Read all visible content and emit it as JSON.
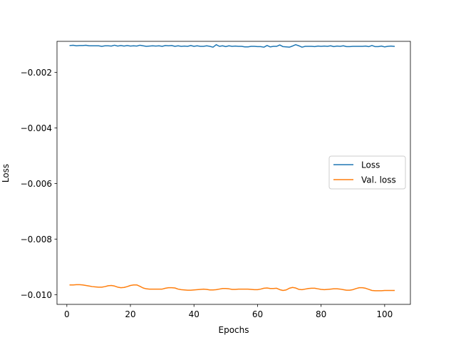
{
  "chart_data": {
    "type": "line",
    "title": "",
    "xlabel": "Epochs",
    "ylabel": "Loss",
    "xlim": [
      -3.1,
      108.1
    ],
    "ylim": [
      -0.01035,
      -0.00088
    ],
    "x_ticks": [
      0,
      20,
      40,
      60,
      80,
      100
    ],
    "x_tick_labels": [
      "0",
      "20",
      "40",
      "60",
      "80",
      "100"
    ],
    "y_ticks": [
      -0.002,
      -0.004,
      -0.006,
      -0.008,
      -0.01
    ],
    "y_tick_labels": [
      "−0.002",
      "−0.004",
      "−0.006",
      "−0.008",
      "−0.010"
    ],
    "grid": false,
    "legend_position": "center-right",
    "series": [
      {
        "name": "Loss",
        "color": "#1f77b4",
        "x_start": 1,
        "x_step": 1,
        "values": [
          -0.00103,
          -0.00102,
          -0.00104,
          -0.00103,
          -0.00103,
          -0.00102,
          -0.00104,
          -0.00104,
          -0.00104,
          -0.00104,
          -0.00106,
          -0.00104,
          -0.00104,
          -0.00105,
          -0.00102,
          -0.00105,
          -0.00103,
          -0.00105,
          -0.00103,
          -0.00105,
          -0.00104,
          -0.00105,
          -0.00102,
          -0.00104,
          -0.00106,
          -0.00105,
          -0.00104,
          -0.00105,
          -0.00104,
          -0.00106,
          -0.00103,
          -0.00104,
          -0.00103,
          -0.00106,
          -0.00104,
          -0.00106,
          -0.00105,
          -0.00106,
          -0.00103,
          -0.00106,
          -0.00104,
          -0.00106,
          -0.00106,
          -0.00104,
          -0.00106,
          -0.00109,
          -0.001,
          -0.00106,
          -0.00104,
          -0.00107,
          -0.00104,
          -0.00106,
          -0.00105,
          -0.00106,
          -0.00106,
          -0.00108,
          -0.00108,
          -0.00106,
          -0.00106,
          -0.00107,
          -0.00107,
          -0.00109,
          -0.00103,
          -0.00108,
          -0.00106,
          -0.00106,
          -0.00101,
          -0.00107,
          -0.00108,
          -0.00109,
          -0.00105,
          -0.001,
          -0.00104,
          -0.00109,
          -0.00106,
          -0.00106,
          -0.00106,
          -0.00107,
          -0.00105,
          -0.00106,
          -0.00105,
          -0.00106,
          -0.00104,
          -0.00107,
          -0.00105,
          -0.00106,
          -0.00104,
          -0.00107,
          -0.00107,
          -0.00106,
          -0.00106,
          -0.00106,
          -0.00106,
          -0.00105,
          -0.00107,
          -0.00103,
          -0.00107,
          -0.00107,
          -0.00105,
          -0.00108,
          -0.00106,
          -0.00105,
          -0.00106
        ]
      },
      {
        "name": "Val. loss",
        "color": "#ff7f0e",
        "x_start": 1,
        "x_step": 1,
        "values": [
          -0.00965,
          -0.00965,
          -0.00964,
          -0.00964,
          -0.00965,
          -0.00967,
          -0.00969,
          -0.00971,
          -0.00972,
          -0.00973,
          -0.00973,
          -0.00971,
          -0.00968,
          -0.00967,
          -0.00969,
          -0.00973,
          -0.00975,
          -0.00974,
          -0.00971,
          -0.00967,
          -0.00965,
          -0.00965,
          -0.0097,
          -0.00976,
          -0.00979,
          -0.0098,
          -0.0098,
          -0.0098,
          -0.0098,
          -0.0098,
          -0.00977,
          -0.00975,
          -0.00975,
          -0.00976,
          -0.0098,
          -0.00982,
          -0.00983,
          -0.00984,
          -0.00984,
          -0.00983,
          -0.00982,
          -0.00981,
          -0.0098,
          -0.00981,
          -0.00983,
          -0.00983,
          -0.00982,
          -0.0098,
          -0.00978,
          -0.00978,
          -0.00979,
          -0.00981,
          -0.00981,
          -0.0098,
          -0.0098,
          -0.0098,
          -0.0098,
          -0.00981,
          -0.00982,
          -0.00982,
          -0.0098,
          -0.00977,
          -0.00976,
          -0.00978,
          -0.00978,
          -0.00977,
          -0.00982,
          -0.00985,
          -0.00983,
          -0.00977,
          -0.00974,
          -0.00976,
          -0.00981,
          -0.00982,
          -0.0098,
          -0.00978,
          -0.00977,
          -0.00977,
          -0.00979,
          -0.00981,
          -0.00982,
          -0.00981,
          -0.0098,
          -0.00979,
          -0.00979,
          -0.0098,
          -0.00982,
          -0.00984,
          -0.00984,
          -0.00982,
          -0.00978,
          -0.00975,
          -0.00975,
          -0.00977,
          -0.00981,
          -0.00985,
          -0.00986,
          -0.00986,
          -0.00986,
          -0.00985,
          -0.00985,
          -0.00985,
          -0.00985
        ]
      }
    ]
  }
}
